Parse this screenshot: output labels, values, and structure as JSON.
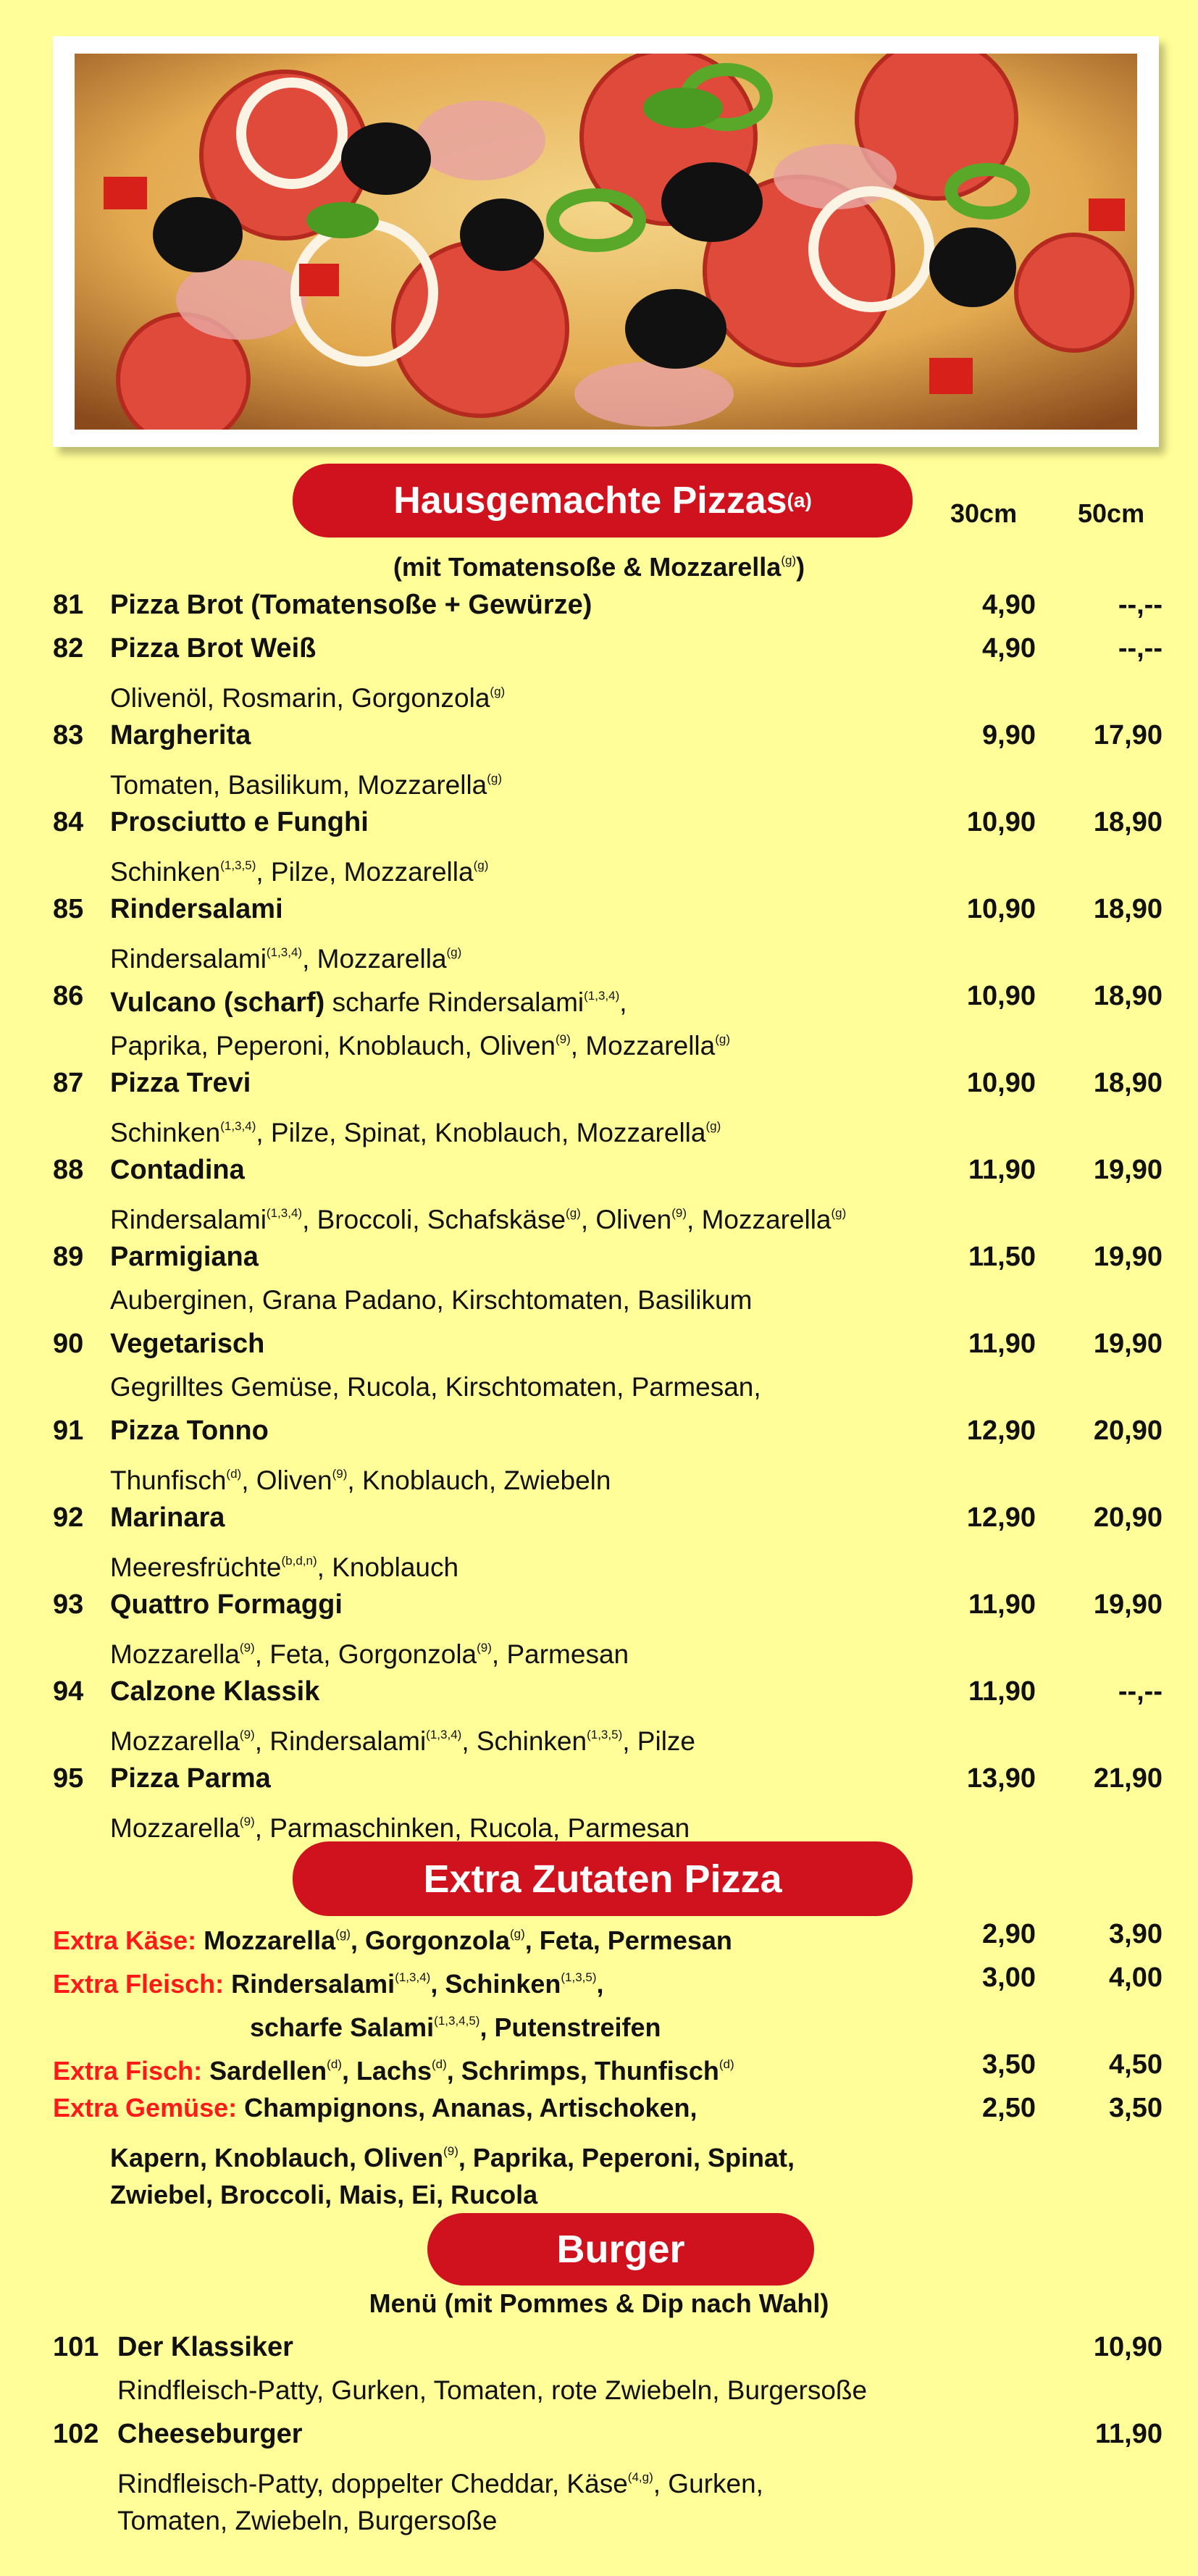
{
  "colors": {
    "background": "#fffe98",
    "pill": "#d0121f",
    "extra_label": "#ff1a1a"
  },
  "pizza_section": {
    "title": "Hausgemachte Pizzas",
    "title_sup": "(a)",
    "col_30": "30cm",
    "col_50": "50cm",
    "subtitle": [
      {
        "t": "(mit Tomatensoße & Mozzarella"
      },
      {
        "s": "(g)"
      },
      {
        "t": ")"
      }
    ],
    "items": [
      {
        "num": "81",
        "name": "Pizza Brot (Tomatensoße + Gewürze)",
        "p30": "4,90",
        "p50": "--,--",
        "desc": []
      },
      {
        "num": "82",
        "name": "Pizza Brot Weiß",
        "p30": "4,90",
        "p50": "--,--",
        "desc": [
          {
            "t": "Olivenöl, Rosmarin, Gorgonzola"
          },
          {
            "s": "(g)"
          }
        ]
      },
      {
        "num": "83",
        "name": "Margherita",
        "p30": "9,90",
        "p50": "17,90",
        "desc": [
          {
            "t": "Tomaten, Basilikum, Mozzarella"
          },
          {
            "s": "(g)"
          }
        ]
      },
      {
        "num": "84",
        "name": "Prosciutto e Funghi",
        "p30": "10,90",
        "p50": "18,90",
        "desc": [
          {
            "t": "Schinken"
          },
          {
            "s": "(1,3,5)"
          },
          {
            "t": ", Pilze, Mozzarella"
          },
          {
            "s": "(g)"
          }
        ]
      },
      {
        "num": "85",
        "name": "Rindersalami",
        "p30": "10,90",
        "p50": "18,90",
        "desc": [
          {
            "t": "Rindersalami"
          },
          {
            "s": "(1,3,4)"
          },
          {
            "t": ", Mozzarella"
          },
          {
            "s": "(g)"
          }
        ]
      },
      {
        "num": "86",
        "name": "Vulcano (scharf)",
        "name_extra": [
          {
            "t": " scharfe Rindersalami"
          },
          {
            "s": "(1,3,4)"
          },
          {
            "t": ","
          }
        ],
        "p30": "10,90",
        "p50": "18,90",
        "desc": [
          {
            "t": " Paprika, Peperoni, Knoblauch, Oliven"
          },
          {
            "s": "(9)"
          },
          {
            "t": ", Mozzarella"
          },
          {
            "s": "(g)"
          }
        ]
      },
      {
        "num": "87",
        "name": "Pizza Trevi",
        "p30": "10,90",
        "p50": "18,90",
        "desc": [
          {
            "t": "Schinken"
          },
          {
            "s": "(1,3,4)"
          },
          {
            "t": ", Pilze, Spinat, Knoblauch, Mozzarella"
          },
          {
            "s": "(g)"
          }
        ]
      },
      {
        "num": "88",
        "name": "Contadina",
        "p30": "11,90",
        "p50": "19,90",
        "desc": [
          {
            "t": "Rindersalami"
          },
          {
            "s": "(1,3,4)"
          },
          {
            "t": ", Broccoli, Schafskäse"
          },
          {
            "s": "(g)"
          },
          {
            "t": ", Oliven"
          },
          {
            "s": "(9)"
          },
          {
            "t": ", Mozzarella"
          },
          {
            "s": "(g)"
          }
        ]
      },
      {
        "num": "89",
        "name": "Parmigiana",
        "p30": "11,50",
        "p50": "19,90",
        "desc": [
          {
            "t": "Auberginen, Grana Padano, Kirschtomaten, Basilikum"
          }
        ]
      },
      {
        "num": "90",
        "name": "Vegetarisch",
        "p30": "11,90",
        "p50": "19,90",
        "desc": [
          {
            "t": "Gegrilltes Gemüse, Rucola, Kirschtomaten, Parmesan,"
          }
        ]
      },
      {
        "num": "91",
        "name": "Pizza Tonno",
        "p30": "12,90",
        "p50": "20,90",
        "desc": [
          {
            "t": "Thunfisch"
          },
          {
            "s": "(d)"
          },
          {
            "t": ", Oliven"
          },
          {
            "s": "(9)"
          },
          {
            "t": ", Knoblauch, Zwiebeln"
          }
        ]
      },
      {
        "num": "92",
        "name": "Marinara",
        "p30": "12,90",
        "p50": "20,90",
        "desc": [
          {
            "t": "Meeresfrüchte"
          },
          {
            "s": "(b,d,n)"
          },
          {
            "t": ", Knoblauch"
          }
        ]
      },
      {
        "num": "93",
        "name": "Quattro Formaggi",
        "p30": "11,90",
        "p50": "19,90",
        "desc": [
          {
            "t": "Mozzarella"
          },
          {
            "s": "(9)"
          },
          {
            "t": ", Feta, Gorgonzola"
          },
          {
            "s": "(9)"
          },
          {
            "t": ", Parmesan"
          }
        ]
      },
      {
        "num": "94",
        "name": "Calzone Klassik",
        "p30": "11,90",
        "p50": "--,--",
        "desc": [
          {
            "t": "Mozzarella"
          },
          {
            "s": "(9)"
          },
          {
            "t": ", Rindersalami"
          },
          {
            "s": "(1,3,4)"
          },
          {
            "t": ", Schinken"
          },
          {
            "s": "(1,3,5)"
          },
          {
            "t": ", Pilze"
          }
        ]
      },
      {
        "num": "95",
        "name": "Pizza Parma",
        "p30": "13,90",
        "p50": "21,90",
        "desc": [
          {
            "t": "Mozzarella"
          },
          {
            "s": "(9)"
          },
          {
            "t": ", Parmaschinken, Rucola, Parmesan"
          }
        ]
      }
    ]
  },
  "extras_section": {
    "title": "Extra Zutaten Pizza",
    "lines": [
      {
        "label": "Extra Käse:",
        "text": [
          {
            "t": " Mozzarella"
          },
          {
            "s": "(g)"
          },
          {
            "t": ", Gorgonzola"
          },
          {
            "s": "(g)"
          },
          {
            "t": ", Feta, Permesan"
          }
        ],
        "p30": "2,90",
        "p50": "3,90"
      },
      {
        "label": "Extra Fleisch:",
        "text": [
          {
            "t": " Rindersalami"
          },
          {
            "s": "(1,3,4)"
          },
          {
            "t": ", Schinken"
          },
          {
            "s": "(1,3,5)"
          },
          {
            "t": ","
          }
        ],
        "p30": "3,00",
        "p50": "4,00"
      },
      {
        "label": "",
        "indent": 345,
        "text": [
          {
            "t": "scharfe Salami"
          },
          {
            "s": "(1,3,4,5)"
          },
          {
            "t": ", Putenstreifen"
          }
        ]
      },
      {
        "label": "Extra Fisch:",
        "text": [
          {
            "t": " Sardellen"
          },
          {
            "s": "(d)"
          },
          {
            "t": ", Lachs"
          },
          {
            "s": "(d)"
          },
          {
            "t": ", Schrimps, Thunfisch"
          },
          {
            "s": "(d)"
          }
        ],
        "p30": "3,50",
        "p50": "4,50"
      },
      {
        "label": "Extra Gemüse:",
        "text": [
          {
            "t": " Champignons, Ananas, Artischoken,"
          }
        ],
        "p30": "2,50",
        "p50": "3,50"
      },
      {
        "label": "",
        "indent": 152,
        "text": [
          {
            "t": "Kapern, Knoblauch, Oliven"
          },
          {
            "s": "(9)"
          },
          {
            "t": ", Paprika, Peperoni, Spinat,"
          }
        ]
      },
      {
        "label": "",
        "indent": 152,
        "text": [
          {
            "t": "Zwiebel, Broccoli, Mais, Ei, Rucola"
          }
        ]
      }
    ]
  },
  "burger_section": {
    "title": "Burger",
    "subtitle": "Menü (mit Pommes & Dip nach Wahl)",
    "items": [
      {
        "num": "101",
        "name": "Der Klassiker",
        "price": "10,90",
        "desc": [
          [
            {
              "t": "Rindfleisch-Patty, Gurken, Tomaten, rote Zwiebeln, Burgersoße"
            }
          ]
        ]
      },
      {
        "num": "102",
        "name": "Cheeseburger",
        "price": "11,90",
        "desc": [
          [
            {
              "t": "Rindfleisch-Patty, doppelter Cheddar, Käse"
            },
            {
              "s": "(4,g)"
            },
            {
              "t": ", Gurken,"
            }
          ],
          [
            {
              "t": "Tomaten, Zwiebeln, Burgersoße"
            }
          ]
        ]
      }
    ]
  }
}
